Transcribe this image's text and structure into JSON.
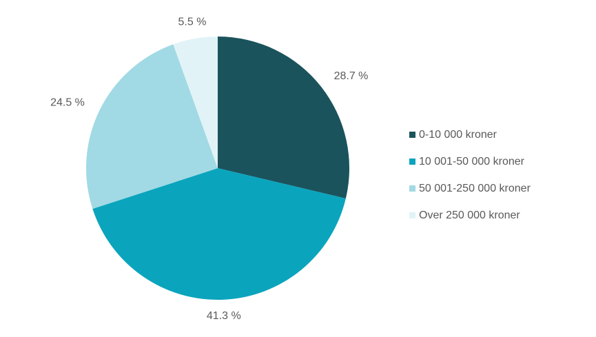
{
  "chart_data": {
    "type": "pie",
    "slices": [
      {
        "label": "0-10 000 kroner",
        "value": 28.7,
        "value_label": "28.7 %",
        "color": "#1a535c"
      },
      {
        "label": "10 001-50 000 kroner",
        "value": 41.3,
        "value_label": "41.3 %",
        "color": "#0ba4bd"
      },
      {
        "label": "50 001-250 000 kroner",
        "value": 24.5,
        "value_label": "24.5 %",
        "color": "#a1dae4"
      },
      {
        "label": "Over 250 000 kroner",
        "value": 5.5,
        "value_label": "5.5 %",
        "color": "#e1f3f7"
      }
    ],
    "start_angle": "12 o'clock",
    "direction": "clockwise",
    "data_labels": "outside",
    "legend_position": "right"
  }
}
